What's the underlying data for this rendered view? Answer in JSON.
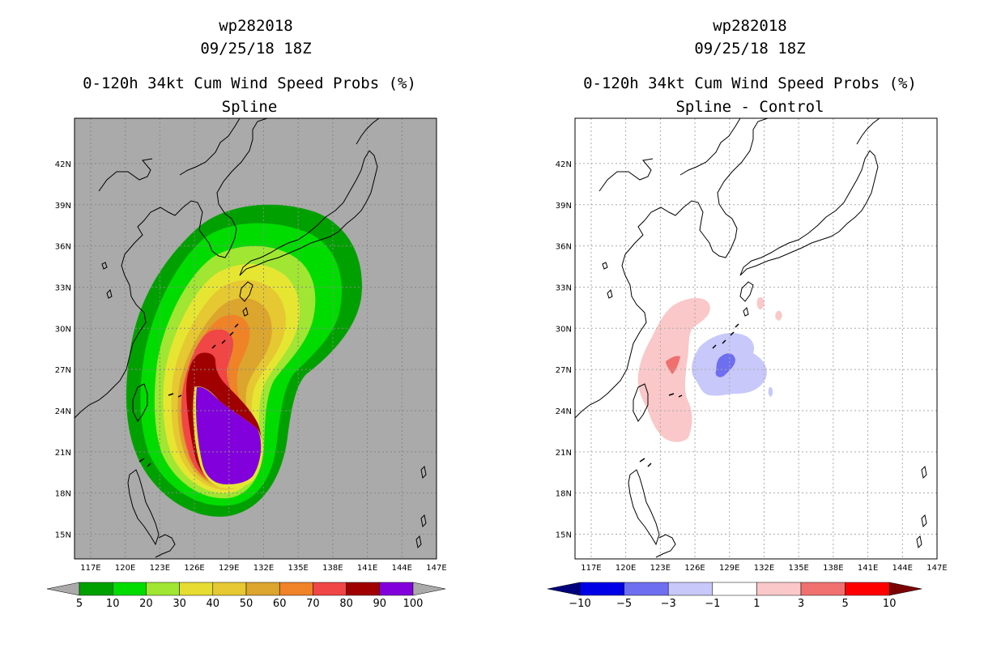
{
  "chart_data": [
    {
      "type": "heatmap",
      "panel": "left",
      "title": [
        "wp282018",
        "09/25/18 18Z",
        "0-120h 34kt Cum Wind Speed Probs (%)",
        "Spline"
      ],
      "storm_id": "wp282018",
      "datetime": "09/25/18 18Z",
      "variable": "0-120h 34kt Cum Wind Speed Probs (%)",
      "subtitle": "Spline",
      "x_ticks": [
        "117E",
        "120E",
        "123E",
        "126E",
        "129E",
        "132E",
        "135E",
        "138E",
        "141E",
        "144E",
        "147E"
      ],
      "y_ticks": [
        "15N",
        "18N",
        "21N",
        "24N",
        "27N",
        "30N",
        "33N",
        "36N",
        "39N",
        "42N"
      ],
      "xlim": [
        115.6,
        147
      ],
      "ylim": [
        13.2,
        45.3
      ],
      "colorbar": {
        "labels": [
          "5",
          "10",
          "20",
          "30",
          "40",
          "50",
          "60",
          "70",
          "80",
          "90",
          "100"
        ],
        "colors": [
          "#00a000",
          "#00dc00",
          "#a0e632",
          "#e6dc32",
          "#e6c832",
          "#dca52d",
          "#f08228",
          "#f04646",
          "#a00000",
          "#8200dc"
        ],
        "under": "#aaaaaa",
        "over": "#aaaaaa"
      },
      "background_color": "#aaaaaa"
    },
    {
      "type": "heatmap",
      "panel": "right",
      "title": [
        "wp282018",
        "09/25/18 18Z",
        "0-120h 34kt Cum Wind Speed Probs (%)",
        "Spline - Control"
      ],
      "storm_id": "wp282018",
      "datetime": "09/25/18 18Z",
      "variable": "0-120h 34kt Cum Wind Speed Probs (%)",
      "subtitle": "Spline - Control",
      "x_ticks": [
        "117E",
        "120E",
        "123E",
        "126E",
        "129E",
        "132E",
        "135E",
        "138E",
        "141E",
        "144E",
        "147E"
      ],
      "y_ticks": [
        "15N",
        "18N",
        "21N",
        "24N",
        "27N",
        "30N",
        "33N",
        "36N",
        "39N",
        "42N"
      ],
      "xlim": [
        115.6,
        147
      ],
      "ylim": [
        13.2,
        45.3
      ],
      "colorbar": {
        "labels": [
          "-10",
          "-5",
          "-3",
          "-1",
          "1",
          "3",
          "5",
          "10"
        ],
        "colors": [
          "#0000e6",
          "#6e6ef0",
          "#c8c8fa",
          "#ffffff",
          "#fac8c8",
          "#f07070",
          "#ff0000"
        ],
        "under": "#00007d",
        "over": "#7d0000"
      },
      "background_color": "#ffffff"
    }
  ]
}
